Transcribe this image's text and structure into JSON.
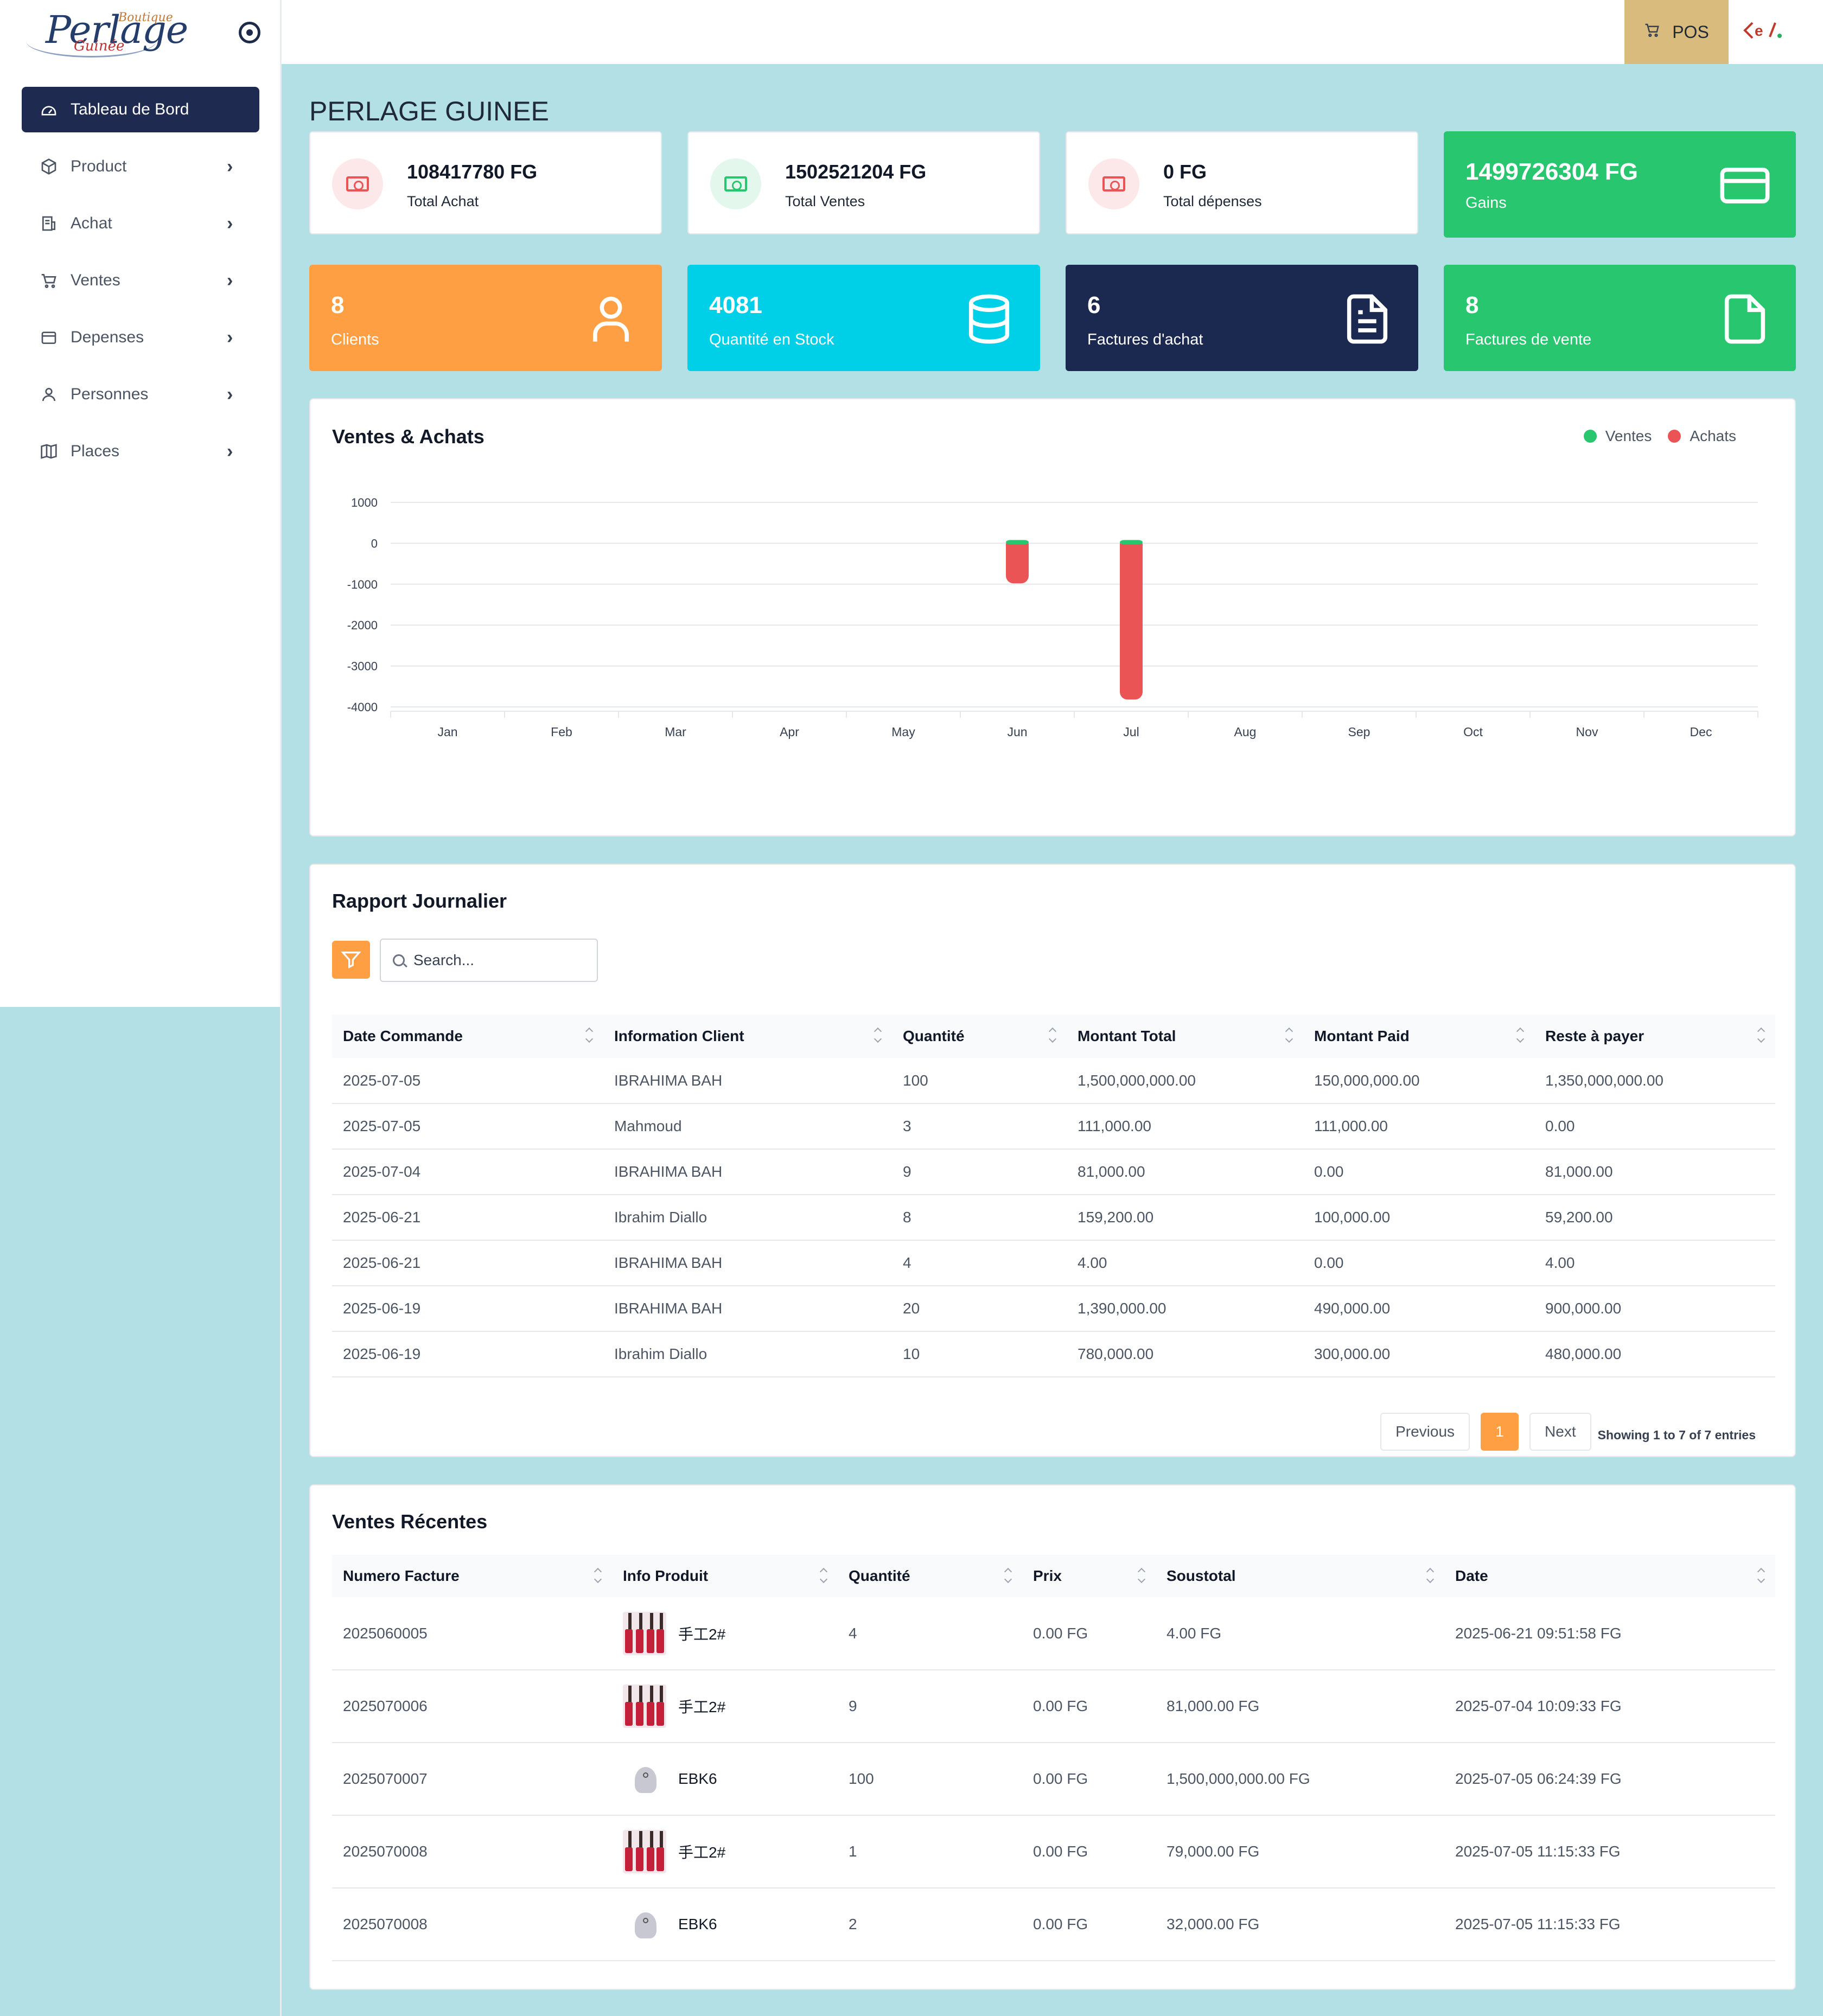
{
  "brand": {
    "logo_main": "Perlage",
    "logo_top": "Boutique",
    "logo_bottom": "Guinée"
  },
  "sidebar": {
    "items": [
      {
        "label": "Tableau de Bord",
        "icon": "dashboard-icon",
        "active": true
      },
      {
        "label": "Product",
        "icon": "box-icon"
      },
      {
        "label": "Achat",
        "icon": "receipt-icon"
      },
      {
        "label": "Ventes",
        "icon": "cart-icon"
      },
      {
        "label": "Depenses",
        "icon": "wallet-icon"
      },
      {
        "label": "Personnes",
        "icon": "user-icon"
      },
      {
        "label": "Places",
        "icon": "map-icon"
      }
    ]
  },
  "topbar": {
    "pos_label": "POS",
    "lang_icon": "language-icon"
  },
  "page": {
    "title": "PERLAGE GUINEE"
  },
  "stats": [
    {
      "value": "108417780 FG",
      "label": "Total Achat",
      "color": "#ea5455"
    },
    {
      "value": "1502521204 FG",
      "label": "Total Ventes",
      "color": "#28c76f"
    },
    {
      "value": "0 FG",
      "label": "Total dépenses",
      "color": "#ea5455"
    }
  ],
  "gains": {
    "value": "1499726304 FG",
    "label": "Gains",
    "color": "#28c76f"
  },
  "counts": [
    {
      "value": "8",
      "label": "Clients",
      "color": "#ff9f43",
      "icon": "user-icon"
    },
    {
      "value": "4081",
      "label": "Quantité en Stock",
      "color": "#00cfe8",
      "icon": "database-icon"
    },
    {
      "value": "6",
      "label": "Factures d'achat",
      "color": "#1b2850",
      "icon": "document-icon"
    },
    {
      "value": "8",
      "label": "Factures de vente",
      "color": "#28c76f",
      "icon": "file-icon"
    }
  ],
  "chart_data": {
    "type": "bar",
    "title": "Ventes & Achats",
    "categories": [
      "Jan",
      "Feb",
      "Mar",
      "Apr",
      "May",
      "Jun",
      "Jul",
      "Aug",
      "Sep",
      "Oct",
      "Nov",
      "Dec"
    ],
    "series": [
      {
        "name": "Ventes",
        "color": "#28c76f",
        "values": [
          0,
          0,
          0,
          0,
          0,
          8,
          60,
          0,
          0,
          0,
          0,
          0
        ]
      },
      {
        "name": "Achats",
        "color": "#ea5455",
        "values": [
          0,
          0,
          0,
          0,
          0,
          -980,
          -3820,
          0,
          0,
          0,
          0,
          0
        ]
      }
    ],
    "yticks": [
      "1000",
      "0",
      "-1000",
      "-2000",
      "-3000",
      "-4000"
    ],
    "ylim": [
      -4000,
      1000
    ],
    "stacked": true,
    "legend": "top-right",
    "grid": true
  },
  "daily_report": {
    "title": "Rapport Journalier",
    "search_placeholder": "Search...",
    "columns": [
      "Date Commande",
      "Information Client",
      "Quantité",
      "Montant Total",
      "Montant Paid",
      "Reste à payer"
    ],
    "rows": [
      [
        "2025-07-05",
        "IBRAHIMA BAH",
        "100",
        "1,500,000,000.00",
        "150,000,000.00",
        "1,350,000,000.00"
      ],
      [
        "2025-07-05",
        "Mahmoud",
        "3",
        "111,000.00",
        "111,000.00",
        "0.00"
      ],
      [
        "2025-07-04",
        "IBRAHIMA BAH",
        "9",
        "81,000.00",
        "0.00",
        "81,000.00"
      ],
      [
        "2025-06-21",
        "Ibrahim Diallo",
        "8",
        "159,200.00",
        "100,000.00",
        "59,200.00"
      ],
      [
        "2025-06-21",
        "IBRAHIMA BAH",
        "4",
        "4.00",
        "0.00",
        "4.00"
      ],
      [
        "2025-06-19",
        "IBRAHIMA BAH",
        "20",
        "1,390,000.00",
        "490,000.00",
        "900,000.00"
      ],
      [
        "2025-06-19",
        "Ibrahim Diallo",
        "10",
        "780,000.00",
        "300,000.00",
        "480,000.00"
      ]
    ],
    "pagination": {
      "previous": "Previous",
      "current": "1",
      "next": "Next",
      "info": "Showing 1 to 7 of 7 entries"
    }
  },
  "recent_sales": {
    "title": "Ventes Récentes",
    "columns": [
      "Numero Facture",
      "Info Produit",
      "Quantité",
      "Prix",
      "Soustotal",
      "Date"
    ],
    "rows": [
      {
        "invoice": "2025060005",
        "product": "手工2#",
        "thumb": "red",
        "qty": "4",
        "price": "0.00 FG",
        "subtotal": "4.00 FG",
        "date": "2025-06-21 09:51:58 FG"
      },
      {
        "invoice": "2025070006",
        "product": "手工2#",
        "thumb": "red",
        "qty": "9",
        "price": "0.00 FG",
        "subtotal": "81,000.00 FG",
        "date": "2025-07-04 10:09:33 FG"
      },
      {
        "invoice": "2025070007",
        "product": "EBK6",
        "thumb": "cap",
        "qty": "100",
        "price": "0.00 FG",
        "subtotal": "1,500,000,000.00 FG",
        "date": "2025-07-05 06:24:39 FG"
      },
      {
        "invoice": "2025070008",
        "product": "手工2#",
        "thumb": "red",
        "qty": "1",
        "price": "0.00 FG",
        "subtotal": "79,000.00 FG",
        "date": "2025-07-05 11:15:33 FG"
      },
      {
        "invoice": "2025070008",
        "product": "EBK6",
        "thumb": "cap",
        "qty": "2",
        "price": "0.00 FG",
        "subtotal": "32,000.00 FG",
        "date": "2025-07-05 11:15:33 FG"
      }
    ]
  }
}
